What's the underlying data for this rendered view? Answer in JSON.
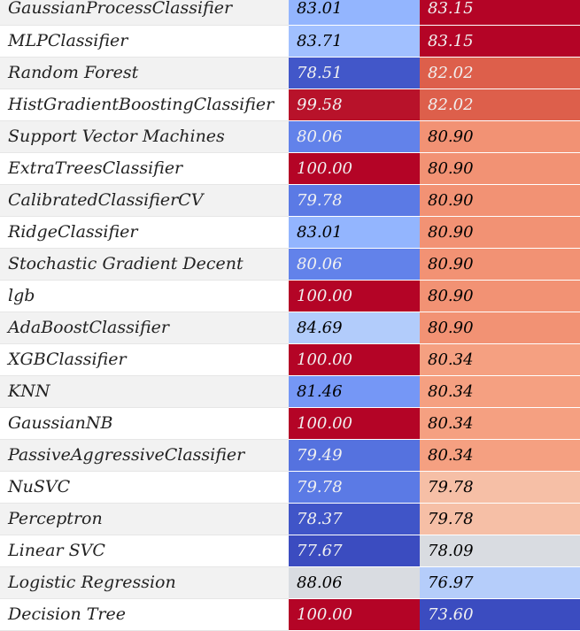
{
  "table": {
    "rows": [
      {
        "model": "GaussianProcessClassifier",
        "train": "83.01",
        "test": "83.15",
        "train_bg": "#93b5fe",
        "test_bg": "#b40426"
      },
      {
        "model": "MLPClassifier",
        "train": "83.71",
        "test": "83.15",
        "train_bg": "#a1c0ff",
        "test_bg": "#b40426"
      },
      {
        "model": "Random Forest",
        "train": "78.51",
        "test": "82.02",
        "train_bg": "#4257c9",
        "test_bg": "#dd5f4b"
      },
      {
        "model": "HistGradientBoostingClassifier",
        "train": "99.58",
        "test": "82.02",
        "train_bg": "#b8122a",
        "test_bg": "#dd5f4b"
      },
      {
        "model": "Support Vector Machines",
        "train": "80.06",
        "test": "80.90",
        "train_bg": "#6282ea",
        "test_bg": "#f29274"
      },
      {
        "model": "ExtraTreesClassifier",
        "train": "100.00",
        "test": "80.90",
        "train_bg": "#b40426",
        "test_bg": "#f29274"
      },
      {
        "model": "CalibratedClassifierCV",
        "train": "79.78",
        "test": "80.90",
        "train_bg": "#5b7ae5",
        "test_bg": "#f29274"
      },
      {
        "model": "RidgeClassifier",
        "train": "83.01",
        "test": "80.90",
        "train_bg": "#93b5fe",
        "test_bg": "#f29274"
      },
      {
        "model": "Stochastic Gradient Decent",
        "train": "80.06",
        "test": "80.90",
        "train_bg": "#6282ea",
        "test_bg": "#f29274"
      },
      {
        "model": "lgb",
        "train": "100.00",
        "test": "80.90",
        "train_bg": "#b40426",
        "test_bg": "#f29274"
      },
      {
        "model": "AdaBoostClassifier",
        "train": "84.69",
        "test": "80.90",
        "train_bg": "#b2ccfb",
        "test_bg": "#f29274"
      },
      {
        "model": "XGBClassifier",
        "train": "100.00",
        "test": "80.34",
        "train_bg": "#b40426",
        "test_bg": "#f5a081"
      },
      {
        "model": "KNN",
        "train": "81.46",
        "test": "80.34",
        "train_bg": "#7597f6",
        "test_bg": "#f5a081"
      },
      {
        "model": "GaussianNB",
        "train": "100.00",
        "test": "80.34",
        "train_bg": "#b40426",
        "test_bg": "#f5a081"
      },
      {
        "model": "PassiveAggressiveClassifier",
        "train": "79.49",
        "test": "80.34",
        "train_bg": "#5572df",
        "test_bg": "#f5a081"
      },
      {
        "model": "NuSVC",
        "train": "79.78",
        "test": "79.78",
        "train_bg": "#5b7ae5",
        "test_bg": "#f6bfa6"
      },
      {
        "model": "Perceptron",
        "train": "78.37",
        "test": "79.78",
        "train_bg": "#4055c8",
        "test_bg": "#f6bfa6"
      },
      {
        "model": "Linear SVC",
        "train": "77.67",
        "test": "78.09",
        "train_bg": "#3b4cc0",
        "test_bg": "#d9dce1"
      },
      {
        "model": "Logistic Regression",
        "train": "88.06",
        "test": "76.97",
        "train_bg": "#d9dce1",
        "test_bg": "#b5cdfa"
      },
      {
        "model": "Decision Tree",
        "train": "100.00",
        "test": "73.60",
        "train_bg": "#b40426",
        "test_bg": "#3b4cc0"
      }
    ]
  }
}
